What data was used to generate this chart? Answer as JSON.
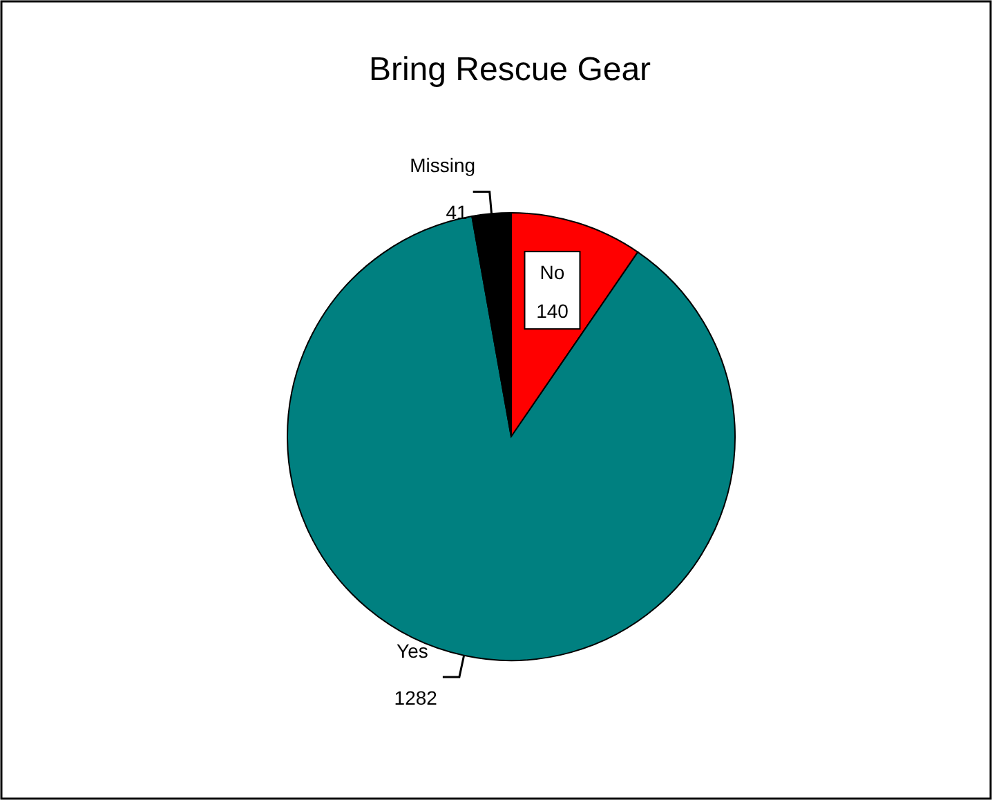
{
  "chart_data": {
    "type": "pie",
    "title": "Bring Rescue Gear",
    "categories": [
      "No",
      "Yes",
      "Missing"
    ],
    "values": [
      140,
      1282,
      41
    ],
    "colors": [
      "#ff0000",
      "#008080",
      "#000000"
    ],
    "data_labels": true
  }
}
